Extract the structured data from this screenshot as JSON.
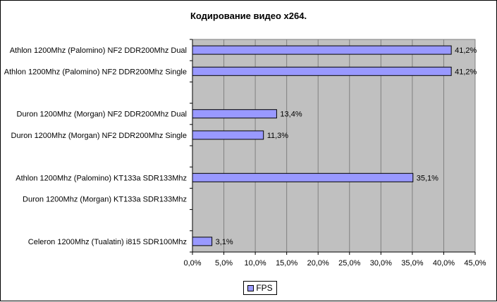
{
  "chart_data": {
    "type": "bar",
    "orientation": "horizontal",
    "title": "Кодирование видео x264.",
    "categories": [
      "Athlon 1200Mhz (Palomino) NF2 DDR200Mhz Dual",
      "Athlon 1200Mhz (Palomino) NF2 DDR200Mhz Single",
      "",
      "Duron 1200Mhz (Morgan) NF2 DDR200Mhz Dual",
      "Duron 1200Mhz (Morgan) NF2 DDR200Mhz Single",
      "",
      "Athlon 1200Mhz (Palomino) KT133a SDR133Mhz",
      "Duron 1200Mhz (Morgan) KT133a SDR133Mhz",
      "",
      "Celeron 1200Mhz (Tualatin) i815 SDR100Mhz"
    ],
    "series": [
      {
        "name": "FPS",
        "values": [
          41.2,
          41.2,
          null,
          13.4,
          11.3,
          null,
          35.1,
          null,
          null,
          3.1
        ],
        "labels": [
          "41,2%",
          "41,2%",
          "",
          "13,4%",
          "11,3%",
          "",
          "35,1%",
          "",
          "",
          "3,1%"
        ],
        "color": "#9999ff"
      }
    ],
    "xlim": [
      0,
      45
    ],
    "xticks": [
      "0,0%",
      "5,0%",
      "10,0%",
      "15,0%",
      "20,0%",
      "25,0%",
      "30,0%",
      "35,0%",
      "40,0%",
      "45,0%"
    ],
    "xlabel": "",
    "ylabel": "",
    "grid": "vertical",
    "plot_background": "#c0c0c0",
    "legend_position": "bottom"
  }
}
